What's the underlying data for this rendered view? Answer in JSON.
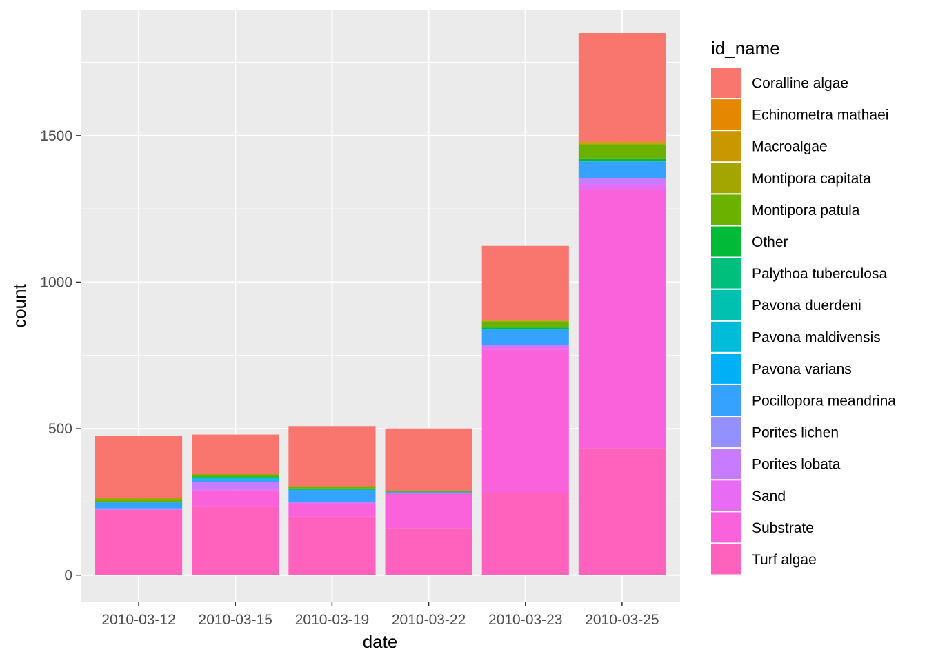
{
  "chart_data": {
    "type": "bar",
    "stacked": true,
    "title": "",
    "xlabel": "date",
    "ylabel": "count",
    "ylim": [
      -90,
      1930
    ],
    "yticks": [
      0,
      500,
      1000,
      1500
    ],
    "grid": true,
    "legend": {
      "title": "id_name",
      "position": "right"
    },
    "categories": [
      "2010-03-12",
      "2010-03-15",
      "2010-03-19",
      "2010-03-22",
      "2010-03-23",
      "2010-03-25"
    ],
    "series": [
      {
        "name": "Coralline algae",
        "color": "#F8766D",
        "values": [
          212,
          135,
          205,
          215,
          255,
          370
        ]
      },
      {
        "name": "Echinometra mathaei",
        "color": "#E58700",
        "values": [
          0,
          0,
          0,
          0,
          0,
          3
        ]
      },
      {
        "name": "Macroalgae",
        "color": "#C99800",
        "values": [
          0,
          0,
          0,
          0,
          0,
          4
        ]
      },
      {
        "name": "Montipora capitata",
        "color": "#A3A500",
        "values": [
          7,
          3,
          3,
          0,
          4,
          3
        ]
      },
      {
        "name": "Montipora patula",
        "color": "#6BB100",
        "values": [
          5,
          5,
          5,
          0,
          20,
          50
        ]
      },
      {
        "name": "Other",
        "color": "#00BA38",
        "values": [
          3,
          3,
          4,
          2,
          6,
          6
        ]
      },
      {
        "name": "Palythoa tuberculosa",
        "color": "#00BF7D",
        "values": [
          0,
          2,
          0,
          0,
          0,
          0
        ]
      },
      {
        "name": "Pavona duerdeni",
        "color": "#00C0AF",
        "values": [
          0,
          2,
          0,
          2,
          0,
          2
        ]
      },
      {
        "name": "Pavona maldivensis",
        "color": "#00BCD8",
        "values": [
          0,
          0,
          0,
          0,
          0,
          0
        ]
      },
      {
        "name": "Pavona varians",
        "color": "#00B0F6",
        "values": [
          0,
          3,
          2,
          1,
          2,
          0
        ]
      },
      {
        "name": "Pocillopora meandrina",
        "color": "#35A2FF",
        "values": [
          20,
          10,
          40,
          0,
          52,
          56
        ]
      },
      {
        "name": "Porites lichen",
        "color": "#9590FF",
        "values": [
          0,
          0,
          0,
          0,
          0,
          0
        ]
      },
      {
        "name": "Porites lobata",
        "color": "#C77CFF",
        "values": [
          5,
          25,
          5,
          0,
          5,
          22
        ]
      },
      {
        "name": "Sand",
        "color": "#E76BF3",
        "values": [
          0,
          3,
          0,
          0,
          10,
          20
        ]
      },
      {
        "name": "Substrate",
        "color": "#FA62DB",
        "values": [
          0,
          53,
          45,
          120,
          490,
          880
        ]
      },
      {
        "name": "Turf algae",
        "color": "#FF62BC",
        "values": [
          223,
          236,
          200,
          161,
          280,
          434
        ]
      }
    ]
  }
}
